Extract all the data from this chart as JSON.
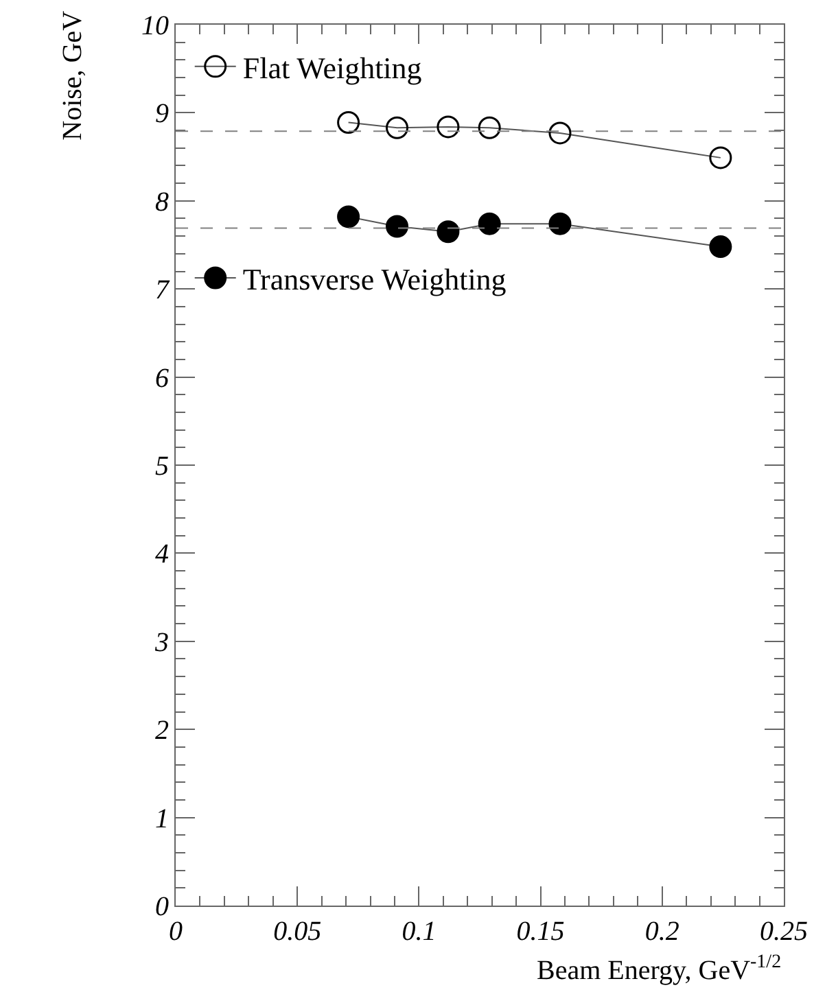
{
  "chart_data": {
    "type": "line",
    "xlabel": "Beam Energy, GeV$^{-1/2}$",
    "ylabel": "Noise, GeV",
    "series": [
      {
        "name": "Flat Weighting",
        "marker": "circle-open",
        "color": "#000000",
        "x": [
          0.071,
          0.091,
          0.112,
          0.129,
          0.158,
          0.224
        ],
        "values": [
          8.89,
          8.83,
          8.84,
          8.83,
          8.77,
          8.49
        ]
      },
      {
        "name": "Transverse Weighting",
        "marker": "circle",
        "color": "#000000",
        "x": [
          0.071,
          0.091,
          0.112,
          0.129,
          0.158,
          0.224
        ],
        "values": [
          7.82,
          7.71,
          7.65,
          7.74,
          7.74,
          7.48
        ]
      }
    ],
    "ref_lines": [
      {
        "axis": "y",
        "value": 8.79,
        "line_style": "dashed",
        "color": "#808080"
      },
      {
        "axis": "y",
        "value": 7.69,
        "line_style": "dashed",
        "color": "#808080"
      }
    ],
    "xlim": [
      0,
      0.25
    ],
    "xticks": [
      0,
      0.05,
      0.1,
      0.15,
      0.2,
      0.25
    ],
    "ylim": [
      0,
      10
    ],
    "yticks": [
      0,
      1,
      2,
      3,
      4,
      5,
      6,
      7,
      8,
      9,
      10
    ],
    "grid": false,
    "legend": "top left",
    "line_style": "solid"
  }
}
